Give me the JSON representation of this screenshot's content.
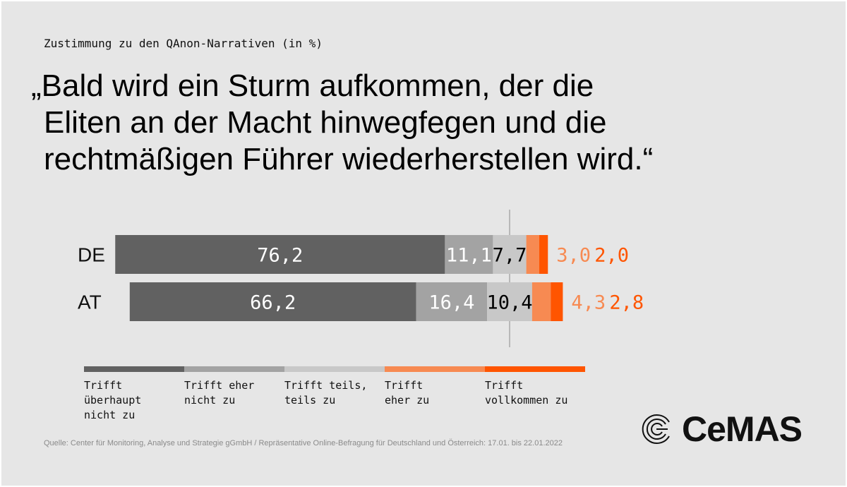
{
  "subtitle": "Zustimmung zu den QAnon-Narrativen (in %)",
  "title_lines": [
    "„Bald wird ein Sturm aufkommen, der die",
    "Eliten an der Macht hinwegfegen und die",
    "rechtmäßigen Führer wiederherstellen wird.“"
  ],
  "source": "Quelle: Center für Monitoring, Analyse und Strategie gGmbH / Repräsentative Online-Befragung für Deutschland und Österreich: 17.01. bis 22.01.2022",
  "logo_text": "CeMAS",
  "chart_data": {
    "type": "bar",
    "orientation": "horizontal-stacked-diverging",
    "categories": [
      "DE",
      "AT"
    ],
    "series": [
      {
        "name": "Trifft überhaupt nicht zu",
        "values": [
          76.2,
          66.2
        ],
        "labels": [
          "76,2",
          "66,2"
        ],
        "color": "#616161",
        "label_color": "#ffffff"
      },
      {
        "name": "Trifft eher nicht zu",
        "values": [
          11.1,
          16.4
        ],
        "labels": [
          "11,1",
          "16,4"
        ],
        "color": "#a3a3a3",
        "label_color": "#ffffff"
      },
      {
        "name": "Trifft teils, teils zu",
        "values": [
          7.7,
          10.4
        ],
        "labels": [
          "7,7",
          "10,4"
        ],
        "color": "#c8c8c8",
        "label_color": "#000000"
      },
      {
        "name": "Trifft eher zu",
        "values": [
          3.0,
          4.3
        ],
        "labels": [
          "3,0",
          "4,3"
        ],
        "color": "#f78a52",
        "label_color": "#f78a52"
      },
      {
        "name": "Trifft vollkommen zu",
        "values": [
          2.0,
          2.8
        ],
        "labels": [
          "2,0",
          "2,8"
        ],
        "color": "#ff5500",
        "label_color": "#ff5500"
      }
    ],
    "legend": {
      "placement": "bottom",
      "entries": [
        [
          "Trifft",
          "überhaupt",
          "nicht zu"
        ],
        [
          "Trifft eher",
          "nicht zu"
        ],
        [
          "Trifft teils,",
          "teils zu"
        ],
        [
          "Trifft",
          "eher zu"
        ],
        [
          "Trifft",
          "vollkommen zu"
        ]
      ]
    },
    "center_line": "midpoint of 'Trifft teils, teils zu'",
    "unit": "%"
  }
}
